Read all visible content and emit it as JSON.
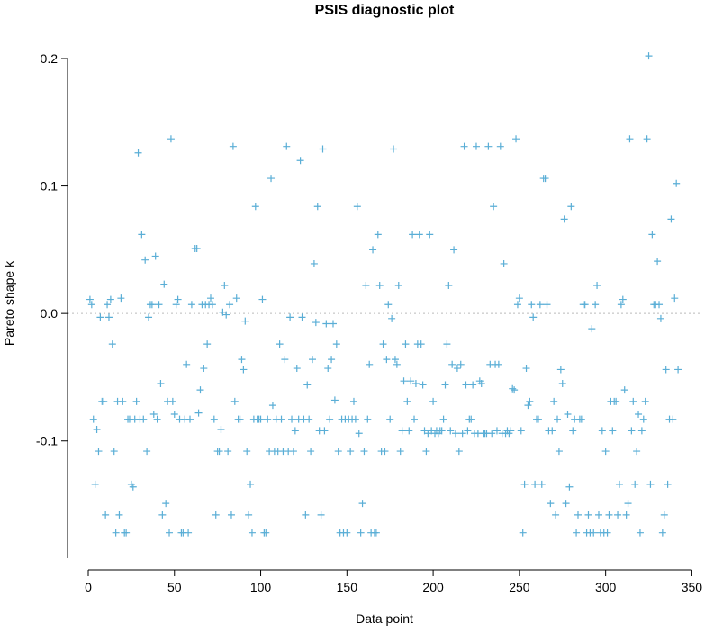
{
  "chart_data": {
    "type": "scatter",
    "title": "PSIS diagnostic plot",
    "xlabel": "Data point",
    "ylabel": "Pareto shape k",
    "xlim": [
      -12,
      355
    ],
    "ylim": [
      -0.192,
      0.212
    ],
    "x_ticks": [
      0,
      50,
      100,
      150,
      200,
      250,
      300,
      350
    ],
    "y_ticks": [
      -0.1,
      0.0,
      0.1,
      0.2
    ],
    "y_tick_labels": [
      "-0.1",
      "0.0",
      "0.1",
      "0.2"
    ],
    "reference_line_y": 0.0,
    "marker": "+",
    "point_color": "#5aaed6",
    "points": [
      [
        1,
        0.011
      ],
      [
        2,
        0.007
      ],
      [
        3,
        -0.083
      ],
      [
        4,
        -0.134
      ],
      [
        5,
        -0.091
      ],
      [
        6,
        -0.108
      ],
      [
        7,
        -0.003
      ],
      [
        8,
        -0.069
      ],
      [
        9,
        -0.069
      ],
      [
        10,
        -0.158
      ],
      [
        11,
        0.007
      ],
      [
        12,
        -0.003
      ],
      [
        13,
        0.011
      ],
      [
        14,
        -0.024
      ],
      [
        15,
        -0.108
      ],
      [
        16,
        -0.172
      ],
      [
        17,
        -0.069
      ],
      [
        18,
        -0.158
      ],
      [
        19,
        0.012
      ],
      [
        20,
        -0.069
      ],
      [
        21,
        -0.172
      ],
      [
        22,
        -0.172
      ],
      [
        23,
        -0.083
      ],
      [
        24,
        -0.083
      ],
      [
        25,
        -0.134
      ],
      [
        26,
        -0.136
      ],
      [
        27,
        -0.083
      ],
      [
        28,
        -0.069
      ],
      [
        29,
        0.126
      ],
      [
        30,
        -0.083
      ],
      [
        31,
        0.062
      ],
      [
        32,
        -0.083
      ],
      [
        33,
        0.042
      ],
      [
        34,
        -0.108
      ],
      [
        35,
        -0.003
      ],
      [
        36,
        0.007
      ],
      [
        37,
        0.007
      ],
      [
        38,
        -0.079
      ],
      [
        39,
        0.045
      ],
      [
        40,
        -0.083
      ],
      [
        41,
        0.007
      ],
      [
        42,
        -0.055
      ],
      [
        43,
        -0.158
      ],
      [
        44,
        0.023
      ],
      [
        45,
        -0.149
      ],
      [
        46,
        -0.069
      ],
      [
        47,
        -0.172
      ],
      [
        48,
        0.137
      ],
      [
        49,
        -0.069
      ],
      [
        50,
        -0.079
      ],
      [
        51,
        0.007
      ],
      [
        52,
        0.011
      ],
      [
        53,
        -0.083
      ],
      [
        54,
        -0.172
      ],
      [
        55,
        -0.172
      ],
      [
        56,
        -0.083
      ],
      [
        57,
        -0.04
      ],
      [
        58,
        -0.172
      ],
      [
        59,
        -0.083
      ],
      [
        60,
        0.007
      ],
      [
        62,
        0.051
      ],
      [
        63,
        0.051
      ],
      [
        64,
        -0.078
      ],
      [
        65,
        -0.06
      ],
      [
        66,
        0.007
      ],
      [
        67,
        -0.043
      ],
      [
        68,
        0.007
      ],
      [
        69,
        -0.024
      ],
      [
        70,
        0.007
      ],
      [
        71,
        0.012
      ],
      [
        72,
        0.007
      ],
      [
        73,
        -0.083
      ],
      [
        74,
        -0.158
      ],
      [
        75,
        -0.108
      ],
      [
        76,
        -0.108
      ],
      [
        77,
        -0.091
      ],
      [
        78,
        0.001
      ],
      [
        79,
        0.022
      ],
      [
        80,
        -0.001
      ],
      [
        81,
        -0.108
      ],
      [
        82,
        0.007
      ],
      [
        83,
        -0.158
      ],
      [
        84,
        0.131
      ],
      [
        85,
        -0.069
      ],
      [
        86,
        0.012
      ],
      [
        87,
        -0.083
      ],
      [
        88,
        -0.083
      ],
      [
        89,
        -0.036
      ],
      [
        90,
        -0.044
      ],
      [
        91,
        -0.006
      ],
      [
        92,
        -0.108
      ],
      [
        93,
        -0.158
      ],
      [
        94,
        -0.134
      ],
      [
        95,
        -0.172
      ],
      [
        96,
        -0.083
      ],
      [
        97,
        0.084
      ],
      [
        98,
        -0.083
      ],
      [
        99,
        -0.083
      ],
      [
        100,
        -0.083
      ],
      [
        101,
        0.011
      ],
      [
        102,
        -0.172
      ],
      [
        103,
        -0.172
      ],
      [
        104,
        -0.083
      ],
      [
        105,
        -0.108
      ],
      [
        106,
        0.106
      ],
      [
        107,
        -0.072
      ],
      [
        108,
        -0.108
      ],
      [
        109,
        -0.083
      ],
      [
        110,
        -0.108
      ],
      [
        111,
        -0.024
      ],
      [
        112,
        -0.083
      ],
      [
        113,
        -0.108
      ],
      [
        114,
        -0.036
      ],
      [
        115,
        0.131
      ],
      [
        116,
        -0.108
      ],
      [
        117,
        -0.003
      ],
      [
        118,
        -0.083
      ],
      [
        119,
        -0.108
      ],
      [
        120,
        -0.092
      ],
      [
        121,
        -0.043
      ],
      [
        122,
        -0.083
      ],
      [
        123,
        0.12
      ],
      [
        124,
        -0.003
      ],
      [
        125,
        -0.083
      ],
      [
        126,
        -0.158
      ],
      [
        127,
        -0.056
      ],
      [
        128,
        -0.083
      ],
      [
        129,
        -0.108
      ],
      [
        130,
        -0.036
      ],
      [
        131,
        0.039
      ],
      [
        132,
        -0.007
      ],
      [
        133,
        0.084
      ],
      [
        134,
        -0.092
      ],
      [
        135,
        -0.158
      ],
      [
        136,
        0.129
      ],
      [
        137,
        -0.092
      ],
      [
        138,
        -0.008
      ],
      [
        139,
        -0.043
      ],
      [
        140,
        -0.083
      ],
      [
        141,
        -0.036
      ],
      [
        142,
        -0.008
      ],
      [
        143,
        -0.068
      ],
      [
        144,
        -0.024
      ],
      [
        145,
        -0.108
      ],
      [
        146,
        -0.172
      ],
      [
        147,
        -0.083
      ],
      [
        148,
        -0.172
      ],
      [
        149,
        -0.083
      ],
      [
        150,
        -0.172
      ],
      [
        151,
        -0.083
      ],
      [
        152,
        -0.108
      ],
      [
        153,
        -0.083
      ],
      [
        154,
        -0.069
      ],
      [
        155,
        -0.083
      ],
      [
        156,
        0.084
      ],
      [
        157,
        -0.094
      ],
      [
        158,
        -0.172
      ],
      [
        159,
        -0.149
      ],
      [
        160,
        -0.108
      ],
      [
        161,
        0.022
      ],
      [
        162,
        -0.083
      ],
      [
        163,
        -0.04
      ],
      [
        164,
        -0.172
      ],
      [
        165,
        0.05
      ],
      [
        166,
        -0.172
      ],
      [
        167,
        -0.172
      ],
      [
        168,
        0.062
      ],
      [
        169,
        0.022
      ],
      [
        170,
        -0.108
      ],
      [
        171,
        -0.024
      ],
      [
        172,
        -0.108
      ],
      [
        173,
        -0.036
      ],
      [
        174,
        0.007
      ],
      [
        175,
        -0.083
      ],
      [
        176,
        -0.004
      ],
      [
        177,
        0.129
      ],
      [
        178,
        -0.036
      ],
      [
        179,
        -0.04
      ],
      [
        180,
        0.022
      ],
      [
        181,
        -0.108
      ],
      [
        182,
        -0.092
      ],
      [
        183,
        -0.053
      ],
      [
        184,
        -0.024
      ],
      [
        185,
        -0.069
      ],
      [
        186,
        -0.092
      ],
      [
        187,
        -0.053
      ],
      [
        188,
        0.062
      ],
      [
        189,
        -0.083
      ],
      [
        190,
        -0.055
      ],
      [
        191,
        -0.024
      ],
      [
        192,
        0.062
      ],
      [
        193,
        -0.024
      ],
      [
        194,
        -0.056
      ],
      [
        195,
        -0.092
      ],
      [
        196,
        -0.108
      ],
      [
        197,
        -0.094
      ],
      [
        198,
        0.062
      ],
      [
        199,
        -0.092
      ],
      [
        200,
        -0.069
      ],
      [
        201,
        -0.094
      ],
      [
        202,
        -0.092
      ],
      [
        203,
        -0.094
      ],
      [
        204,
        -0.092
      ],
      [
        205,
        -0.092
      ],
      [
        206,
        -0.083
      ],
      [
        207,
        -0.056
      ],
      [
        208,
        -0.024
      ],
      [
        209,
        0.022
      ],
      [
        210,
        -0.092
      ],
      [
        211,
        -0.04
      ],
      [
        212,
        0.05
      ],
      [
        213,
        -0.094
      ],
      [
        214,
        -0.043
      ],
      [
        215,
        -0.108
      ],
      [
        216,
        -0.04
      ],
      [
        217,
        -0.094
      ],
      [
        218,
        0.131
      ],
      [
        219,
        -0.056
      ],
      [
        220,
        -0.092
      ],
      [
        221,
        -0.083
      ],
      [
        222,
        -0.083
      ],
      [
        223,
        -0.056
      ],
      [
        224,
        -0.094
      ],
      [
        225,
        0.131
      ],
      [
        226,
        -0.094
      ],
      [
        227,
        -0.053
      ],
      [
        228,
        -0.055
      ],
      [
        229,
        -0.094
      ],
      [
        230,
        -0.094
      ],
      [
        231,
        -0.094
      ],
      [
        232,
        0.131
      ],
      [
        233,
        -0.04
      ],
      [
        234,
        -0.094
      ],
      [
        235,
        0.084
      ],
      [
        236,
        -0.04
      ],
      [
        237,
        -0.092
      ],
      [
        238,
        -0.04
      ],
      [
        239,
        0.131
      ],
      [
        240,
        -0.094
      ],
      [
        241,
        0.039
      ],
      [
        242,
        -0.094
      ],
      [
        243,
        -0.092
      ],
      [
        244,
        -0.094
      ],
      [
        245,
        -0.092
      ],
      [
        246,
        -0.059
      ],
      [
        247,
        -0.06
      ],
      [
        248,
        0.137
      ],
      [
        249,
        0.007
      ],
      [
        250,
        0.012
      ],
      [
        251,
        -0.092
      ],
      [
        252,
        -0.172
      ],
      [
        253,
        -0.134
      ],
      [
        254,
        -0.043
      ],
      [
        255,
        -0.072
      ],
      [
        256,
        -0.069
      ],
      [
        257,
        0.007
      ],
      [
        258,
        -0.003
      ],
      [
        259,
        -0.134
      ],
      [
        260,
        -0.083
      ],
      [
        261,
        -0.083
      ],
      [
        262,
        0.007
      ],
      [
        263,
        -0.134
      ],
      [
        264,
        0.106
      ],
      [
        265,
        0.106
      ],
      [
        266,
        0.007
      ],
      [
        267,
        -0.092
      ],
      [
        268,
        -0.149
      ],
      [
        269,
        -0.092
      ],
      [
        270,
        -0.069
      ],
      [
        271,
        -0.158
      ],
      [
        272,
        -0.083
      ],
      [
        273,
        -0.108
      ],
      [
        274,
        -0.044
      ],
      [
        275,
        -0.055
      ],
      [
        276,
        0.074
      ],
      [
        277,
        -0.149
      ],
      [
        278,
        -0.079
      ],
      [
        279,
        -0.136
      ],
      [
        280,
        0.084
      ],
      [
        281,
        -0.092
      ],
      [
        282,
        -0.083
      ],
      [
        283,
        -0.172
      ],
      [
        284,
        -0.158
      ],
      [
        285,
        -0.083
      ],
      [
        286,
        -0.083
      ],
      [
        287,
        0.007
      ],
      [
        288,
        0.007
      ],
      [
        289,
        -0.172
      ],
      [
        290,
        -0.158
      ],
      [
        291,
        -0.172
      ],
      [
        292,
        -0.012
      ],
      [
        293,
        -0.172
      ],
      [
        294,
        0.007
      ],
      [
        295,
        0.022
      ],
      [
        296,
        -0.158
      ],
      [
        297,
        -0.172
      ],
      [
        298,
        -0.092
      ],
      [
        299,
        -0.172
      ],
      [
        300,
        -0.108
      ],
      [
        301,
        -0.172
      ],
      [
        302,
        -0.158
      ],
      [
        303,
        -0.069
      ],
      [
        304,
        -0.092
      ],
      [
        305,
        -0.069
      ],
      [
        306,
        -0.069
      ],
      [
        307,
        -0.158
      ],
      [
        308,
        -0.134
      ],
      [
        309,
        0.007
      ],
      [
        310,
        0.011
      ],
      [
        311,
        -0.06
      ],
      [
        312,
        -0.158
      ],
      [
        313,
        -0.149
      ],
      [
        314,
        0.137
      ],
      [
        315,
        -0.092
      ],
      [
        316,
        -0.069
      ],
      [
        317,
        -0.134
      ],
      [
        318,
        -0.108
      ],
      [
        319,
        -0.079
      ],
      [
        320,
        -0.172
      ],
      [
        321,
        -0.092
      ],
      [
        322,
        -0.083
      ],
      [
        323,
        -0.069
      ],
      [
        324,
        0.137
      ],
      [
        325,
        0.202
      ],
      [
        326,
        -0.134
      ],
      [
        327,
        0.062
      ],
      [
        328,
        0.007
      ],
      [
        329,
        0.007
      ],
      [
        330,
        0.041
      ],
      [
        331,
        0.007
      ],
      [
        332,
        -0.004
      ],
      [
        333,
        -0.172
      ],
      [
        334,
        -0.158
      ],
      [
        335,
        -0.044
      ],
      [
        336,
        -0.134
      ],
      [
        337,
        -0.083
      ],
      [
        338,
        0.074
      ],
      [
        339,
        -0.083
      ],
      [
        340,
        0.012
      ],
      [
        341,
        0.102
      ],
      [
        342,
        -0.044
      ]
    ]
  }
}
